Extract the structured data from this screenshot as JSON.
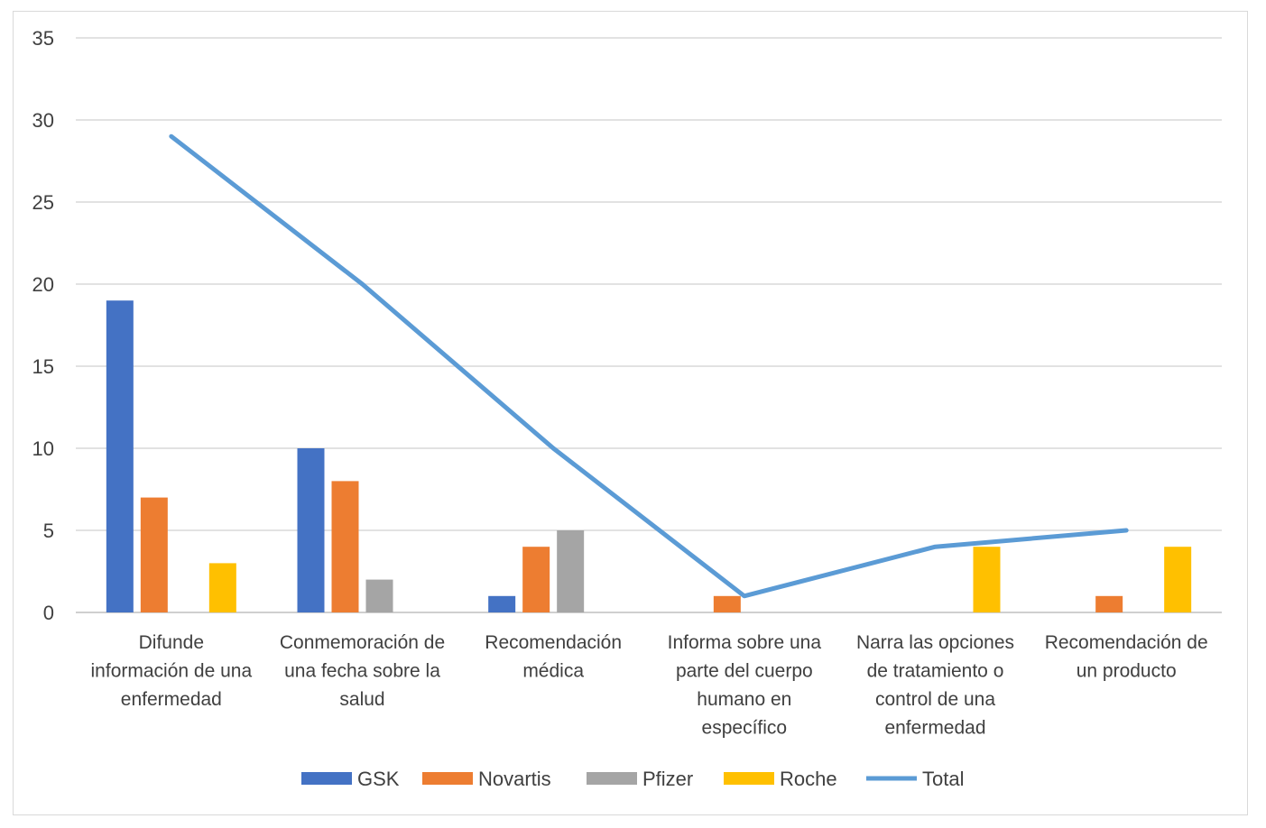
{
  "chart_data": {
    "type": "bar",
    "categories": [
      [
        "Difunde",
        "información de una",
        "enfermedad"
      ],
      [
        "Conmemoración de",
        "una fecha sobre la",
        "salud"
      ],
      [
        "Recomendación",
        "médica"
      ],
      [
        "Informa sobre una",
        "parte del cuerpo",
        "humano en",
        "específico"
      ],
      [
        "Narra las opciones",
        "de tratamiento o",
        "control de una",
        "enfermedad"
      ],
      [
        "Recomendación de",
        "un producto"
      ]
    ],
    "series": [
      {
        "name": "GSK",
        "type": "bar",
        "color": "#4472c4",
        "values": [
          19,
          10,
          1,
          0,
          0,
          0
        ]
      },
      {
        "name": "Novartis",
        "type": "bar",
        "color": "#ed7d31",
        "values": [
          7,
          8,
          4,
          1,
          0,
          1
        ]
      },
      {
        "name": "Pfizer",
        "type": "bar",
        "color": "#a5a5a5",
        "values": [
          0,
          2,
          5,
          0,
          0,
          0
        ]
      },
      {
        "name": "Roche",
        "type": "bar",
        "color": "#ffc000",
        "values": [
          3,
          0,
          0,
          0,
          4,
          4
        ]
      },
      {
        "name": "Total",
        "type": "line",
        "color": "#5b9bd5",
        "values": [
          29,
          20,
          10,
          1,
          4,
          5
        ]
      }
    ],
    "ylim": [
      0,
      35
    ],
    "yticks": [
      0,
      5,
      10,
      15,
      20,
      25,
      30,
      35
    ],
    "grid": true,
    "legend_position": "bottom"
  }
}
